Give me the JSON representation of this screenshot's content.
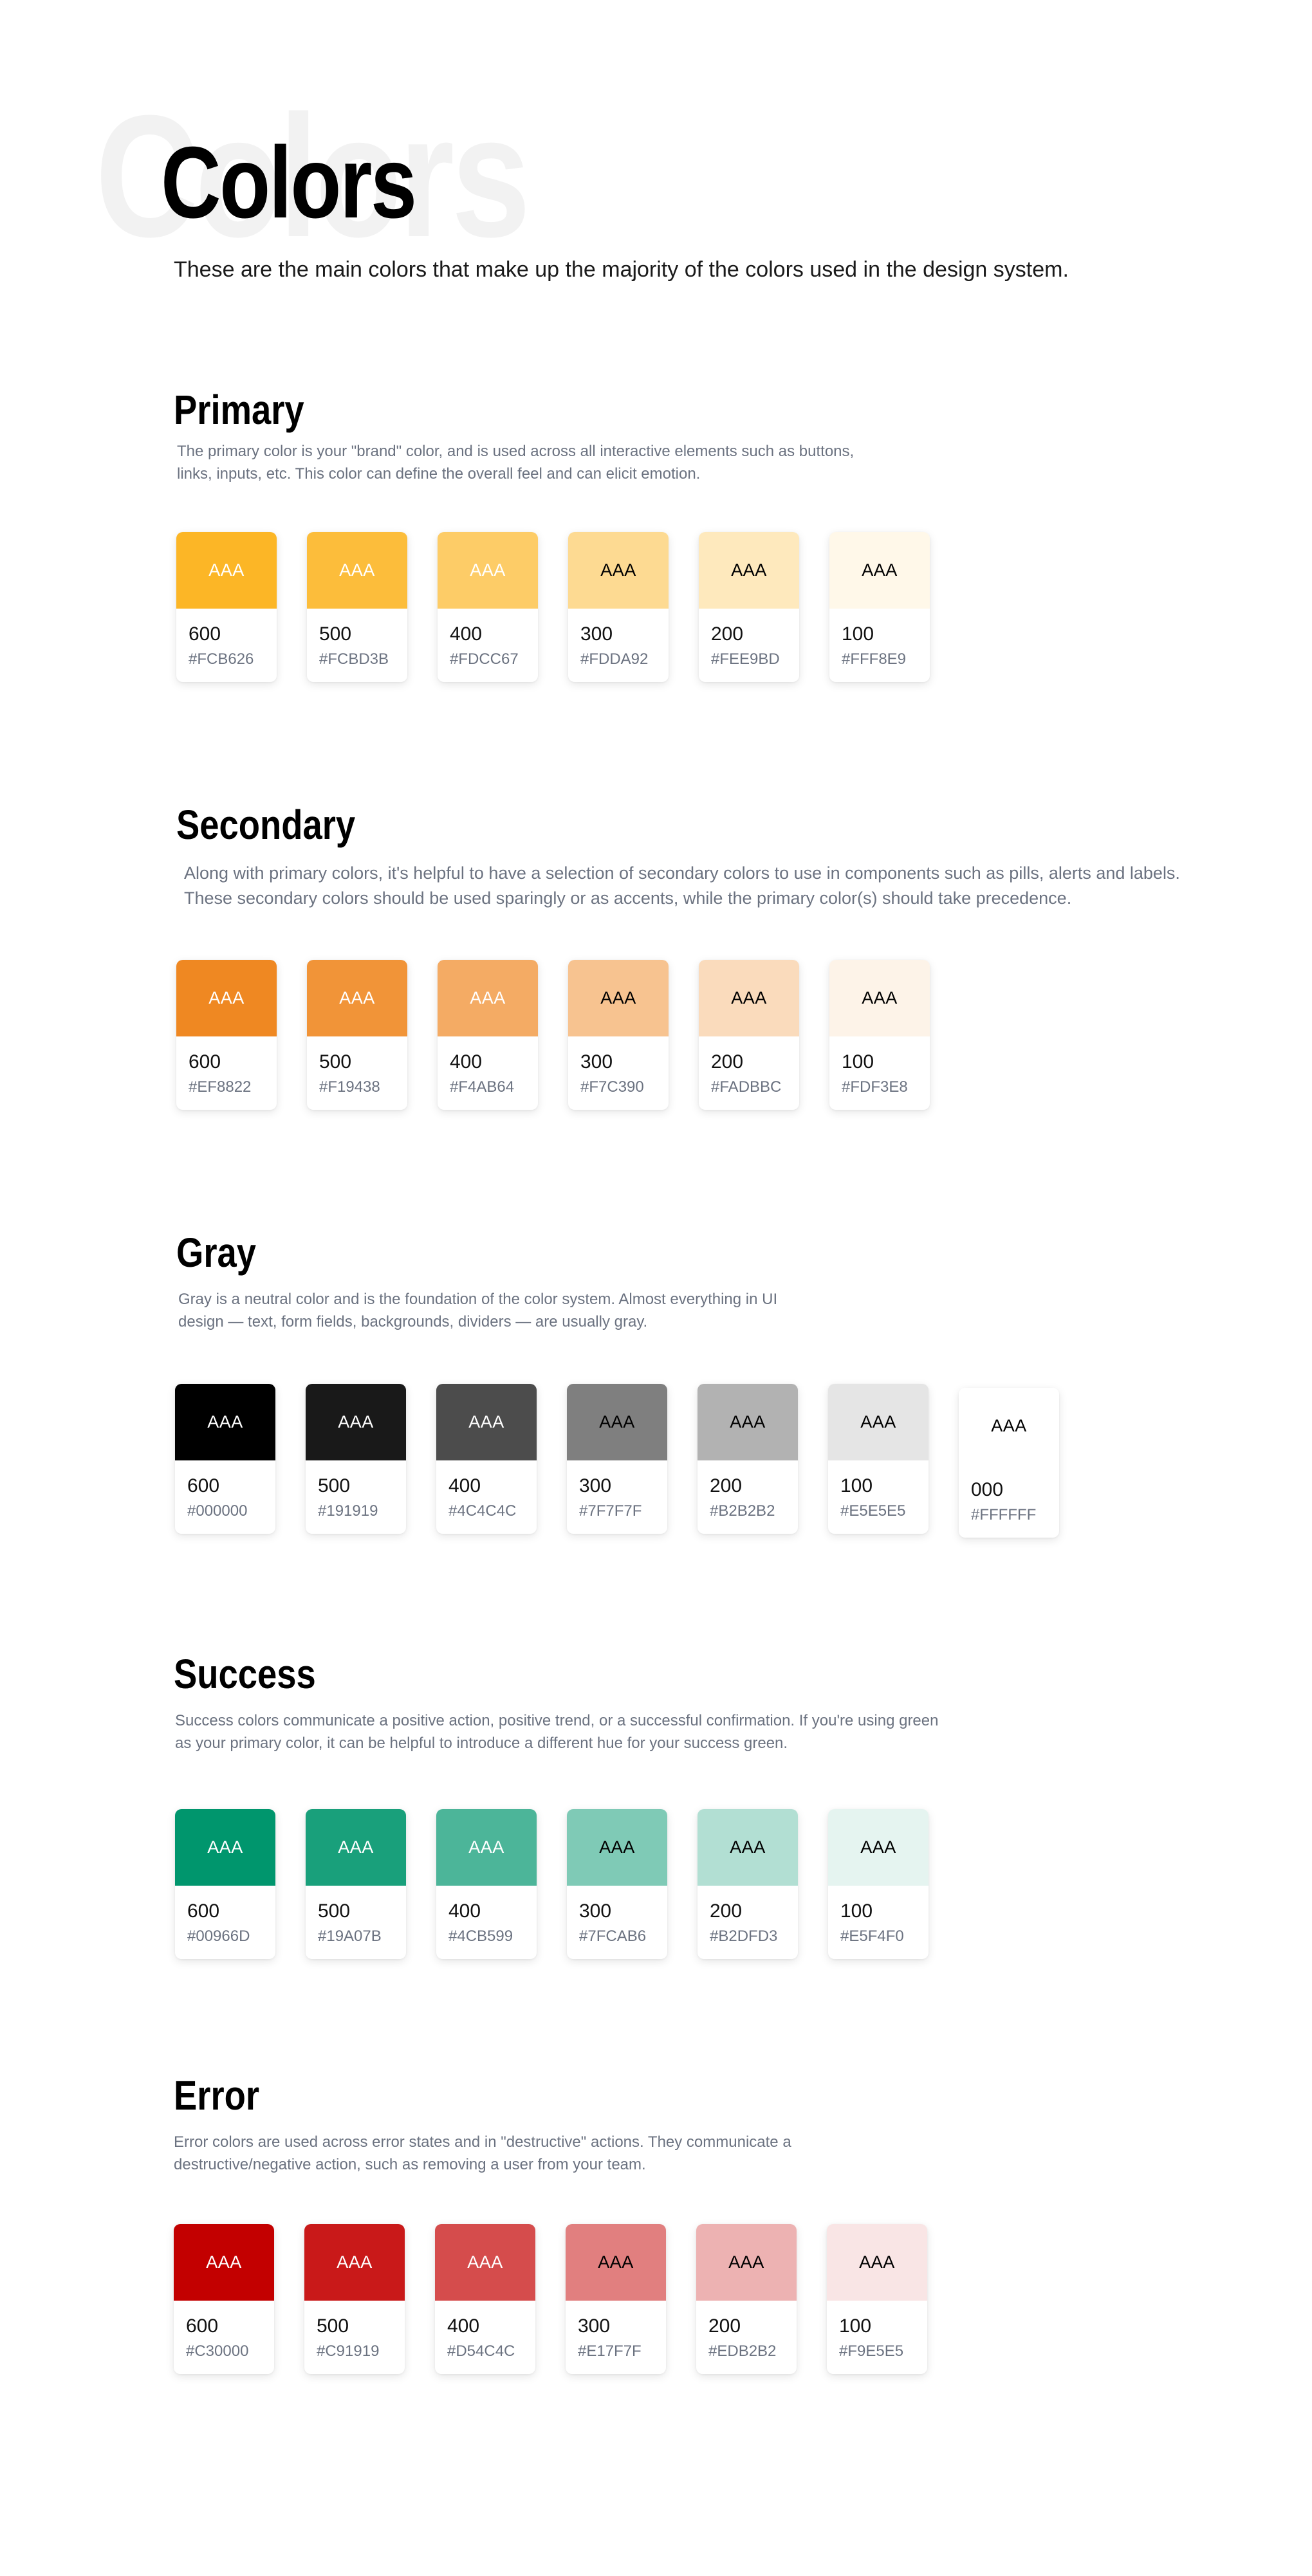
{
  "page": {
    "watermark": "Colors",
    "title": "Colors",
    "subtitle": "These are the main colors that make up the majority of the colors used in the design system."
  },
  "sections": [
    {
      "title": "Primary",
      "description": "The primary color is your \"brand\" color, and is used across all interactive elements such as buttons, links, inputs, etc. This color can define the overall feel and can elicit emotion.",
      "swatches": [
        {
          "label": "AAA",
          "shade": "600",
          "hex": "#FCB626",
          "color": "#FCB626",
          "text_color": "#ffffff"
        },
        {
          "label": "AAA",
          "shade": "500",
          "hex": "#FCBD3B",
          "color": "#FCBD3B",
          "text_color": "#ffffff"
        },
        {
          "label": "AAA",
          "shade": "400",
          "hex": "#FDCC67",
          "color": "#FDCC67",
          "text_color": "#ffffff"
        },
        {
          "label": "AAA",
          "shade": "300",
          "hex": "#FDDA92",
          "color": "#FDDA92",
          "text_color": "#000000"
        },
        {
          "label": "AAA",
          "shade": "200",
          "hex": "#FEE9BD",
          "color": "#FEE9BD",
          "text_color": "#000000"
        },
        {
          "label": "AAA",
          "shade": "100",
          "hex": "#FFF8E9",
          "color": "#FFF8E9",
          "text_color": "#000000"
        }
      ]
    },
    {
      "title": "Secondary",
      "description": "Along with primary colors, it's helpful to have a selection of secondary colors to use in components such as pills, alerts and labels. These secondary colors should be used sparingly or as accents, while the primary color(s) should take precedence.",
      "swatches": [
        {
          "label": "AAA",
          "shade": "600",
          "hex": "#EF8822",
          "color": "#EF8822",
          "text_color": "#ffffff"
        },
        {
          "label": "AAA",
          "shade": "500",
          "hex": "#F19438",
          "color": "#F19438",
          "text_color": "#ffffff"
        },
        {
          "label": "AAA",
          "shade": "400",
          "hex": "#F4AB64",
          "color": "#F4AB64",
          "text_color": "#ffffff"
        },
        {
          "label": "AAA",
          "shade": "300",
          "hex": "#F7C390",
          "color": "#F7C390",
          "text_color": "#000000"
        },
        {
          "label": "AAA",
          "shade": "200",
          "hex": "#FADBBC",
          "color": "#FADBBC",
          "text_color": "#000000"
        },
        {
          "label": "AAA",
          "shade": "100",
          "hex": "#FDF3E8",
          "color": "#FDF3E8",
          "text_color": "#000000"
        }
      ]
    },
    {
      "title": "Gray",
      "description": "Gray is a neutral color and is the foundation of the color system. Almost everything in UI design — text, form fields, backgrounds, dividers — are usually gray.",
      "swatches": [
        {
          "label": "AAA",
          "shade": "600",
          "hex": "#000000",
          "color": "#000000",
          "text_color": "#ffffff"
        },
        {
          "label": "AAA",
          "shade": "500",
          "hex": "#191919",
          "color": "#191919",
          "text_color": "#ffffff"
        },
        {
          "label": "AAA",
          "shade": "400",
          "hex": "#4C4C4C",
          "color": "#4C4C4C",
          "text_color": "#ffffff"
        },
        {
          "label": "AAA",
          "shade": "300",
          "hex": "#7F7F7F",
          "color": "#7F7F7F",
          "text_color": "#000000"
        },
        {
          "label": "AAA",
          "shade": "200",
          "hex": "#B2B2B2",
          "color": "#B2B2B2",
          "text_color": "#000000"
        },
        {
          "label": "AAA",
          "shade": "100",
          "hex": "#E5E5E5",
          "color": "#E5E5E5",
          "text_color": "#000000"
        },
        {
          "label": "AAA",
          "shade": "000",
          "hex": "#FFFFFF",
          "color": "#FFFFFF",
          "text_color": "#000000"
        }
      ]
    },
    {
      "title": "Success",
      "description": "Success colors communicate a positive action, positive trend, or a successful confirmation. If you're using green as your primary color, it can be helpful to introduce a different hue for your success green.",
      "swatches": [
        {
          "label": "AAA",
          "shade": "600",
          "hex": "#00966D",
          "color": "#00966D",
          "text_color": "#ffffff"
        },
        {
          "label": "AAA",
          "shade": "500",
          "hex": "#19A07B",
          "color": "#19A07B",
          "text_color": "#ffffff"
        },
        {
          "label": "AAA",
          "shade": "400",
          "hex": "#4CB599",
          "color": "#4CB599",
          "text_color": "#ffffff"
        },
        {
          "label": "AAA",
          "shade": "300",
          "hex": "#7FCAB6",
          "color": "#7FCAB6",
          "text_color": "#000000"
        },
        {
          "label": "AAA",
          "shade": "200",
          "hex": "#B2DFD3",
          "color": "#B2DFD3",
          "text_color": "#000000"
        },
        {
          "label": "AAA",
          "shade": "100",
          "hex": "#E5F4F0",
          "color": "#E5F4F0",
          "text_color": "#000000"
        }
      ]
    },
    {
      "title": "Error",
      "description": "Error colors are used across error states and in \"destructive\" actions. They communicate a destructive/negative action, such as removing a user from your team.",
      "swatches": [
        {
          "label": "AAA",
          "shade": "600",
          "hex": "#C30000",
          "color": "#C30000",
          "text_color": "#ffffff"
        },
        {
          "label": "AAA",
          "shade": "500",
          "hex": "#C91919",
          "color": "#C91919",
          "text_color": "#ffffff"
        },
        {
          "label": "AAA",
          "shade": "400",
          "hex": "#D54C4C",
          "color": "#D54C4C",
          "text_color": "#ffffff"
        },
        {
          "label": "AAA",
          "shade": "300",
          "hex": "#E17F7F",
          "color": "#E17F7F",
          "text_color": "#000000"
        },
        {
          "label": "AAA",
          "shade": "200",
          "hex": "#EDB2B2",
          "color": "#EDB2B2",
          "text_color": "#000000"
        },
        {
          "label": "AAA",
          "shade": "100",
          "hex": "#F9E5E5",
          "color": "#F9E5E5",
          "text_color": "#000000"
        }
      ]
    }
  ]
}
